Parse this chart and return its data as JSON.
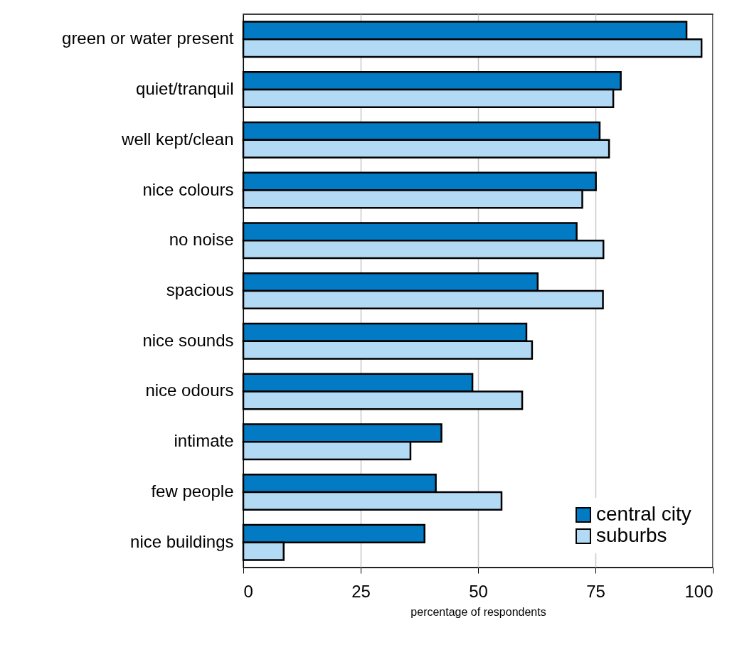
{
  "chart_data": {
    "type": "bar",
    "orientation": "horizontal",
    "xlabel": "percentage of respondents",
    "categories": [
      "green or water present",
      "quiet/tranquil",
      "well kept/clean",
      "nice colours",
      "no noise",
      "spacious",
      "nice sounds",
      "nice odours",
      "intimate",
      "few people",
      "nice buildings"
    ],
    "series": [
      {
        "name": "central city",
        "color": "#037bc4",
        "values": [
          94.4,
          80.4,
          75.9,
          75.1,
          71.0,
          62.7,
          60.3,
          48.8,
          42.2,
          41.0,
          38.6
        ]
      },
      {
        "name": "suburbs",
        "color": "#b2daf4",
        "values": [
          97.6,
          78.8,
          77.9,
          72.2,
          76.7,
          76.6,
          61.5,
          59.4,
          35.6,
          55.0,
          8.6
        ]
      }
    ],
    "xlim": [
      0,
      100
    ],
    "xticks": [
      0,
      25,
      50,
      75,
      100
    ],
    "grid": "x",
    "legend": "bottom right"
  }
}
